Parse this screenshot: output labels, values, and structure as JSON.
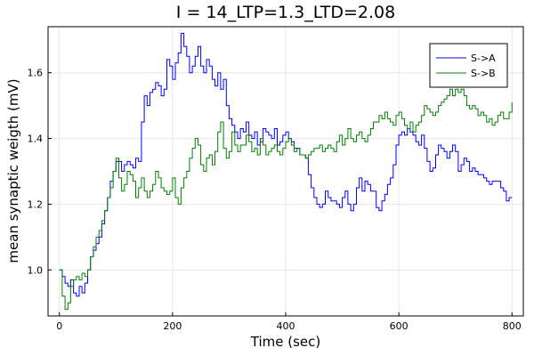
{
  "chart_data": {
    "type": "line",
    "title": "I = 14_LTP=1.3_LTD=2.08",
    "xlabel": "Time (sec)",
    "ylabel": "mean synaptic weigth (mV)",
    "xlim": [
      -20,
      820
    ],
    "ylim": [
      0.86,
      1.74
    ],
    "xticks": [
      0,
      200,
      400,
      600,
      800
    ],
    "xtick_labels": [
      "0",
      "200",
      "400",
      "600",
      "800"
    ],
    "yticks": [
      1.0,
      1.2,
      1.4,
      1.6
    ],
    "ytick_labels": [
      "1.0",
      "1.2",
      "1.4",
      "1.6"
    ],
    "grid": true,
    "legend_position": "top-right",
    "series": [
      {
        "name": "S->A",
        "color": "#0000ff",
        "x": [
          0,
          5,
          10,
          15,
          20,
          25,
          30,
          35,
          40,
          45,
          50,
          55,
          60,
          65,
          70,
          75,
          80,
          85,
          90,
          95,
          100,
          105,
          110,
          115,
          120,
          125,
          130,
          135,
          140,
          145,
          150,
          155,
          160,
          165,
          170,
          175,
          180,
          185,
          190,
          195,
          200,
          205,
          210,
          215,
          220,
          225,
          230,
          235,
          240,
          245,
          250,
          255,
          260,
          265,
          270,
          275,
          280,
          285,
          290,
          295,
          300,
          305,
          310,
          315,
          320,
          325,
          330,
          335,
          340,
          345,
          350,
          355,
          360,
          365,
          370,
          375,
          380,
          385,
          390,
          395,
          400,
          405,
          410,
          415,
          420,
          425,
          430,
          435,
          440,
          445,
          450,
          455,
          460,
          465,
          470,
          475,
          480,
          485,
          490,
          495,
          500,
          505,
          510,
          515,
          520,
          525,
          530,
          535,
          540,
          545,
          550,
          555,
          560,
          565,
          570,
          575,
          580,
          585,
          590,
          595,
          600,
          605,
          610,
          615,
          620,
          625,
          630,
          635,
          640,
          645,
          650,
          655,
          660,
          665,
          670,
          675,
          680,
          685,
          690,
          695,
          700,
          705,
          710,
          715,
          720,
          725,
          730,
          735,
          740,
          745,
          750,
          755,
          760,
          765,
          770,
          775,
          780,
          785,
          790,
          795,
          800
        ],
        "y": [
          1.0,
          0.98,
          0.96,
          0.95,
          0.97,
          0.93,
          0.92,
          0.95,
          0.93,
          0.96,
          1.0,
          1.04,
          1.06,
          1.08,
          1.1,
          1.14,
          1.18,
          1.22,
          1.27,
          1.3,
          1.33,
          1.33,
          1.3,
          1.32,
          1.33,
          1.32,
          1.31,
          1.34,
          1.33,
          1.45,
          1.53,
          1.5,
          1.54,
          1.55,
          1.57,
          1.56,
          1.53,
          1.55,
          1.64,
          1.62,
          1.58,
          1.63,
          1.66,
          1.72,
          1.68,
          1.65,
          1.6,
          1.62,
          1.65,
          1.68,
          1.62,
          1.6,
          1.64,
          1.62,
          1.58,
          1.56,
          1.6,
          1.55,
          1.58,
          1.5,
          1.46,
          1.44,
          1.42,
          1.4,
          1.43,
          1.42,
          1.45,
          1.41,
          1.4,
          1.42,
          1.38,
          1.39,
          1.43,
          1.42,
          1.41,
          1.4,
          1.43,
          1.38,
          1.39,
          1.41,
          1.42,
          1.4,
          1.39,
          1.37,
          1.37,
          1.35,
          1.35,
          1.34,
          1.29,
          1.25,
          1.22,
          1.2,
          1.19,
          1.2,
          1.24,
          1.22,
          1.21,
          1.21,
          1.2,
          1.19,
          1.22,
          1.24,
          1.2,
          1.18,
          1.2,
          1.25,
          1.28,
          1.24,
          1.27,
          1.26,
          1.24,
          1.24,
          1.19,
          1.18,
          1.21,
          1.23,
          1.26,
          1.28,
          1.32,
          1.38,
          1.41,
          1.42,
          1.41,
          1.43,
          1.42,
          1.41,
          1.39,
          1.38,
          1.41,
          1.37,
          1.33,
          1.3,
          1.31,
          1.35,
          1.38,
          1.37,
          1.36,
          1.34,
          1.36,
          1.38,
          1.36,
          1.3,
          1.32,
          1.34,
          1.33,
          1.3,
          1.31,
          1.3,
          1.29,
          1.29,
          1.28,
          1.27,
          1.26,
          1.27,
          1.27,
          1.27,
          1.25,
          1.24,
          1.21,
          1.22,
          1.22
        ]
      },
      {
        "name": "S->B",
        "color": "#008000",
        "x": [
          0,
          5,
          10,
          15,
          20,
          25,
          30,
          35,
          40,
          45,
          50,
          55,
          60,
          65,
          70,
          75,
          80,
          85,
          90,
          95,
          100,
          105,
          110,
          115,
          120,
          125,
          130,
          135,
          140,
          145,
          150,
          155,
          160,
          165,
          170,
          175,
          180,
          185,
          190,
          195,
          200,
          205,
          210,
          215,
          220,
          225,
          230,
          235,
          240,
          245,
          250,
          255,
          260,
          265,
          270,
          275,
          280,
          285,
          290,
          295,
          300,
          305,
          310,
          315,
          320,
          325,
          330,
          335,
          340,
          345,
          350,
          355,
          360,
          365,
          370,
          375,
          380,
          385,
          390,
          395,
          400,
          405,
          410,
          415,
          420,
          425,
          430,
          435,
          440,
          445,
          450,
          455,
          460,
          465,
          470,
          475,
          480,
          485,
          490,
          495,
          500,
          505,
          510,
          515,
          520,
          525,
          530,
          535,
          540,
          545,
          550,
          555,
          560,
          565,
          570,
          575,
          580,
          585,
          590,
          595,
          600,
          605,
          610,
          615,
          620,
          625,
          630,
          635,
          640,
          645,
          650,
          655,
          660,
          665,
          670,
          675,
          680,
          685,
          690,
          695,
          700,
          705,
          710,
          715,
          720,
          725,
          730,
          735,
          740,
          745,
          750,
          755,
          760,
          765,
          770,
          775,
          780,
          785,
          790,
          795,
          800
        ],
        "y": [
          1.0,
          0.92,
          0.88,
          0.9,
          0.95,
          0.97,
          0.98,
          0.97,
          0.99,
          0.98,
          1.0,
          1.04,
          1.07,
          1.1,
          1.12,
          1.15,
          1.18,
          1.22,
          1.25,
          1.3,
          1.34,
          1.28,
          1.24,
          1.26,
          1.3,
          1.29,
          1.27,
          1.22,
          1.25,
          1.28,
          1.24,
          1.22,
          1.24,
          1.26,
          1.3,
          1.28,
          1.25,
          1.24,
          1.23,
          1.24,
          1.28,
          1.22,
          1.2,
          1.25,
          1.28,
          1.3,
          1.34,
          1.37,
          1.4,
          1.38,
          1.32,
          1.3,
          1.34,
          1.35,
          1.32,
          1.36,
          1.42,
          1.45,
          1.37,
          1.34,
          1.36,
          1.42,
          1.38,
          1.36,
          1.38,
          1.38,
          1.41,
          1.39,
          1.36,
          1.37,
          1.35,
          1.4,
          1.38,
          1.35,
          1.36,
          1.37,
          1.38,
          1.36,
          1.35,
          1.37,
          1.39,
          1.4,
          1.38,
          1.36,
          1.37,
          1.35,
          1.35,
          1.34,
          1.35,
          1.36,
          1.37,
          1.37,
          1.38,
          1.36,
          1.37,
          1.38,
          1.37,
          1.36,
          1.39,
          1.41,
          1.38,
          1.4,
          1.43,
          1.4,
          1.39,
          1.41,
          1.42,
          1.4,
          1.39,
          1.41,
          1.43,
          1.45,
          1.45,
          1.47,
          1.46,
          1.48,
          1.46,
          1.45,
          1.44,
          1.47,
          1.48,
          1.46,
          1.44,
          1.43,
          1.45,
          1.42,
          1.44,
          1.45,
          1.47,
          1.5,
          1.49,
          1.48,
          1.47,
          1.48,
          1.5,
          1.51,
          1.52,
          1.53,
          1.55,
          1.53,
          1.55,
          1.54,
          1.55,
          1.53,
          1.5,
          1.49,
          1.5,
          1.49,
          1.47,
          1.48,
          1.47,
          1.45,
          1.46,
          1.44,
          1.45,
          1.47,
          1.48,
          1.46,
          1.46,
          1.48,
          1.51
        ]
      }
    ]
  }
}
